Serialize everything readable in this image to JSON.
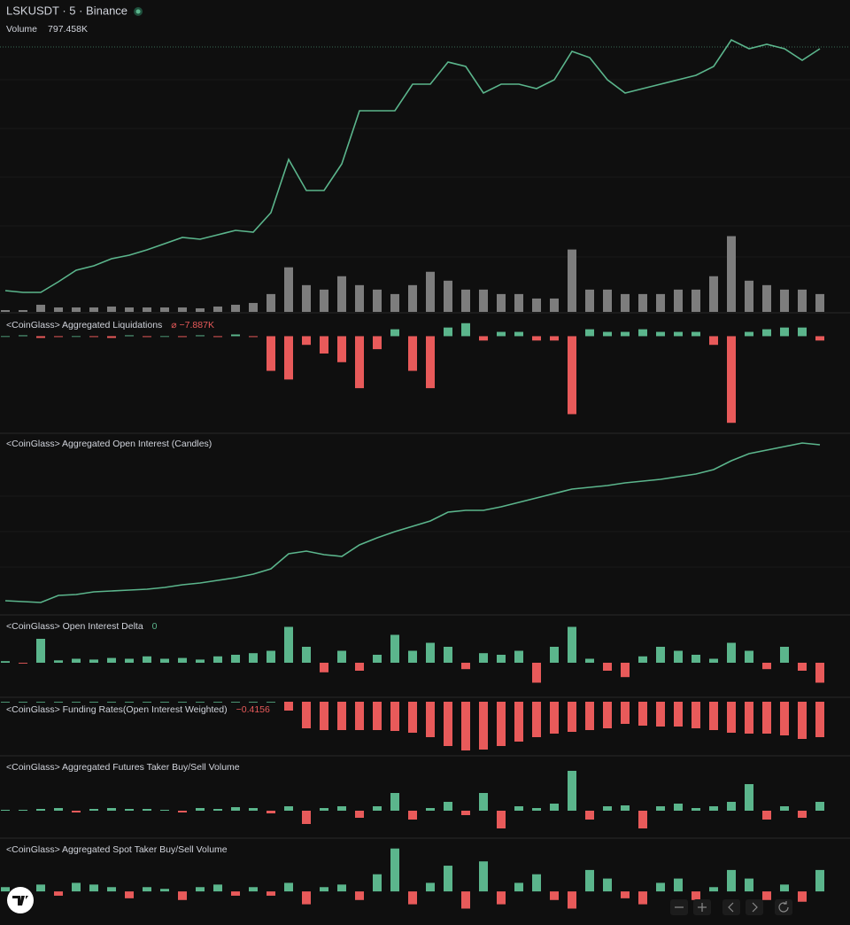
{
  "chart_data": [
    {
      "type": "line",
      "title": "LSKUSDT · 5 · Binance",
      "color": "#5bb58c",
      "ylim": [
        0,
        350
      ],
      "values": [
        22,
        20,
        20,
        32,
        45,
        50,
        58,
        62,
        68,
        75,
        82,
        80,
        85,
        90,
        88,
        110,
        170,
        135,
        135,
        165,
        225,
        225,
        225,
        255,
        255,
        280,
        275,
        245,
        255,
        255,
        250,
        260,
        292,
        285,
        260,
        245,
        250,
        255,
        260,
        265,
        275,
        305,
        295,
        300,
        295,
        282,
        295
      ]
    },
    {
      "type": "bar",
      "title": "Volume",
      "legend_value": "797.458K",
      "color": "#7d7d7d",
      "ylim": [
        0,
        350
      ],
      "values": [
        2,
        2,
        8,
        5,
        5,
        5,
        6,
        5,
        5,
        5,
        5,
        4,
        6,
        8,
        10,
        20,
        50,
        30,
        25,
        40,
        30,
        25,
        20,
        30,
        45,
        35,
        25,
        25,
        20,
        20,
        15,
        15,
        70,
        25,
        25,
        20,
        20,
        20,
        25,
        25,
        40,
        85,
        35,
        30,
        25,
        25,
        20
      ]
    },
    {
      "type": "bar",
      "title": "<CoinGlass> Aggregated Liquidations",
      "legend_value": "⌀ −7.887K",
      "legend_value_color": "#e85a5a",
      "color_up": "#5bb58c",
      "color_down": "#e85a5a",
      "ylim": [
        -110,
        25
      ],
      "values": [
        0,
        1,
        -2,
        -1,
        0,
        -1,
        -2,
        1,
        -1,
        0,
        -1,
        1,
        -1,
        2,
        -1,
        -40,
        -50,
        -10,
        -20,
        -30,
        -60,
        -15,
        8,
        -40,
        -60,
        10,
        15,
        -5,
        5,
        5,
        -5,
        -5,
        -90,
        8,
        5,
        5,
        8,
        5,
        5,
        5,
        -10,
        -100,
        5,
        8,
        10,
        10,
        -5
      ]
    },
    {
      "type": "line",
      "title": "<CoinGlass> Aggregated Open Interest (Candles)",
      "color": "#5bb58c",
      "ylim": [
        0,
        200
      ],
      "values": [
        14,
        13,
        12,
        20,
        21,
        24,
        25,
        26,
        27,
        29,
        32,
        34,
        37,
        40,
        44,
        50,
        67,
        70,
        66,
        64,
        77,
        85,
        92,
        98,
        104,
        114,
        116,
        116,
        120,
        125,
        130,
        135,
        140,
        142,
        144,
        147,
        149,
        151,
        154,
        157,
        162,
        172,
        180,
        184,
        188,
        192,
        190
      ]
    },
    {
      "type": "bar",
      "title": "<CoinGlass> Open Interest Delta",
      "legend_value": "0",
      "legend_value_color": "#5bb58c",
      "color_up": "#5bb58c",
      "color_down": "#e85a5a",
      "ylim": [
        -40,
        50
      ],
      "values": [
        2,
        -1,
        30,
        3,
        5,
        4,
        6,
        5,
        8,
        5,
        6,
        4,
        8,
        10,
        12,
        15,
        45,
        20,
        -12,
        15,
        -10,
        10,
        35,
        15,
        25,
        20,
        -8,
        12,
        10,
        15,
        -25,
        20,
        45,
        5,
        -10,
        -18,
        8,
        20,
        15,
        10,
        5,
        25,
        15,
        -8,
        20,
        -10,
        -25
      ]
    },
    {
      "type": "bar",
      "title": "<CoinGlass> Funding Rates(Open Interest Weighted)",
      "legend_value": "−0.4156",
      "legend_value_color": "#e85a5a",
      "color_up": "#5bb58c",
      "color_down": "#e85a5a",
      "ylim": [
        -60,
        0
      ],
      "values": [
        0,
        0,
        0,
        0,
        0,
        0,
        0,
        0,
        0,
        0,
        0,
        0,
        0,
        0,
        0,
        0,
        -10,
        -30,
        -32,
        -32,
        -32,
        -32,
        -33,
        -35,
        -40,
        -50,
        -55,
        -54,
        -50,
        -45,
        -40,
        -36,
        -34,
        -32,
        -30,
        -25,
        -27,
        -28,
        -28,
        -30,
        -32,
        -35,
        -36,
        -36,
        -38,
        -42,
        -40
      ]
    },
    {
      "type": "bar",
      "title": "<CoinGlass> Aggregated Futures Taker Buy/Sell Volume",
      "color_up": "#5bb58c",
      "color_down": "#e85a5a",
      "ylim": [
        -30,
        60
      ],
      "values": [
        1,
        1,
        2,
        3,
        -2,
        2,
        3,
        2,
        2,
        1,
        -2,
        3,
        2,
        4,
        3,
        -3,
        5,
        -15,
        3,
        5,
        -8,
        5,
        20,
        -10,
        3,
        10,
        -5,
        20,
        -20,
        5,
        3,
        8,
        45,
        -10,
        5,
        6,
        -20,
        5,
        8,
        3,
        5,
        10,
        30,
        -10,
        5,
        -8,
        10
      ]
    },
    {
      "type": "bar",
      "title": "<CoinGlass> Aggregated Spot Taker Buy/Sell Volume",
      "color_up": "#5bb58c",
      "color_down": "#e85a5a",
      "ylim": [
        -35,
        60
      ],
      "values": [
        5,
        -3,
        8,
        -5,
        10,
        8,
        5,
        -8,
        5,
        3,
        -10,
        5,
        8,
        -5,
        5,
        -5,
        10,
        -15,
        5,
        8,
        -10,
        20,
        50,
        -15,
        10,
        30,
        -20,
        35,
        -15,
        10,
        20,
        -10,
        -20,
        25,
        15,
        -8,
        -15,
        10,
        15,
        -10,
        5,
        25,
        15,
        -10,
        8,
        -12,
        25
      ]
    }
  ]
}
